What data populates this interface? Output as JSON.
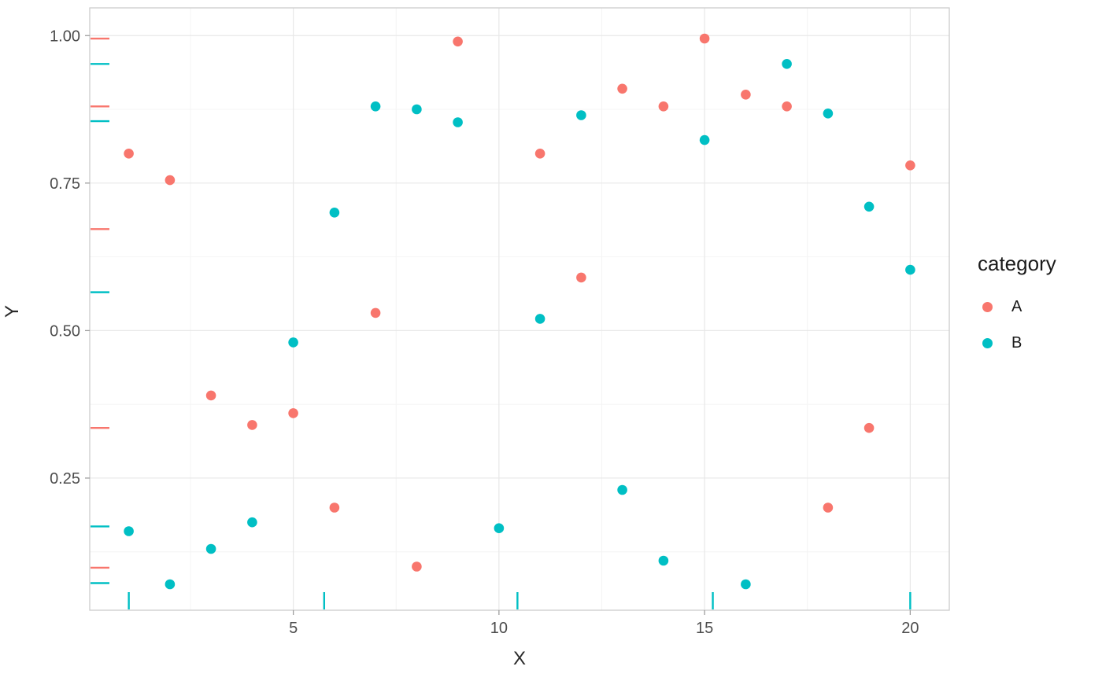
{
  "chart_data": {
    "type": "scatter",
    "title": "",
    "xlabel": "X",
    "ylabel": "Y",
    "legend_title": "category",
    "legend_position": "right",
    "grid": true,
    "background": "#FFFFFF",
    "x_ticks": [
      5,
      10,
      15,
      20
    ],
    "x_tick_labels": [
      "5",
      "10",
      "15",
      "20"
    ],
    "y_ticks": [
      0.25,
      0.5,
      0.75,
      1.0
    ],
    "y_tick_labels": [
      "0.25",
      "0.50",
      "0.75",
      "1.00"
    ],
    "x_minor": [
      2.5,
      7.5,
      12.5,
      17.5
    ],
    "y_minor": [
      0.125,
      0.375,
      0.625,
      0.875
    ],
    "xlim": [
      0.05,
      20.95
    ],
    "ylim": [
      0.026,
      1.047
    ],
    "series": [
      {
        "name": "A",
        "color": "#F8766D",
        "points": [
          [
            1,
            0.8
          ],
          [
            2,
            0.755
          ],
          [
            3,
            0.39
          ],
          [
            4,
            0.34
          ],
          [
            5,
            0.36
          ],
          [
            6,
            0.2
          ],
          [
            7,
            0.53
          ],
          [
            8,
            0.1
          ],
          [
            9,
            0.99
          ],
          [
            11,
            0.8
          ],
          [
            12,
            0.59
          ],
          [
            13,
            0.91
          ],
          [
            14,
            0.88
          ],
          [
            15,
            0.995
          ],
          [
            16,
            0.9
          ],
          [
            17,
            0.88
          ],
          [
            18,
            0.2
          ],
          [
            19,
            0.335
          ],
          [
            20,
            0.78
          ]
        ]
      },
      {
        "name": "B",
        "color": "#00BFC4",
        "points": [
          [
            1,
            0.16
          ],
          [
            2,
            0.07
          ],
          [
            3,
            0.13
          ],
          [
            4,
            0.175
          ],
          [
            5,
            0.48
          ],
          [
            6,
            0.7
          ],
          [
            7,
            0.88
          ],
          [
            8,
            0.875
          ],
          [
            9,
            0.853
          ],
          [
            10,
            0.165
          ],
          [
            11,
            0.52
          ],
          [
            12,
            0.865
          ],
          [
            13,
            0.23
          ],
          [
            14,
            0.11
          ],
          [
            15,
            0.823
          ],
          [
            16,
            0.07
          ],
          [
            17,
            0.952
          ],
          [
            18,
            0.868
          ],
          [
            19,
            0.71
          ],
          [
            20,
            0.603
          ]
        ]
      }
    ],
    "rug_left": [
      {
        "y": 0.995,
        "category": "A"
      },
      {
        "y": 0.952,
        "category": "B"
      },
      {
        "y": 0.88,
        "category": "A"
      },
      {
        "y": 0.855,
        "category": "B"
      },
      {
        "y": 0.672,
        "category": "A"
      },
      {
        "y": 0.565,
        "category": "B"
      },
      {
        "y": 0.335,
        "category": "A"
      },
      {
        "y": 0.168,
        "category": "B"
      },
      {
        "y": 0.098,
        "category": "A"
      },
      {
        "y": 0.072,
        "category": "B"
      }
    ],
    "rug_bottom": [
      {
        "x": 1.0,
        "category": "B"
      },
      {
        "x": 5.75,
        "category": "B"
      },
      {
        "x": 10.45,
        "category": "B"
      },
      {
        "x": 15.2,
        "category": "B"
      },
      {
        "x": 20.0,
        "category": "B"
      }
    ]
  }
}
